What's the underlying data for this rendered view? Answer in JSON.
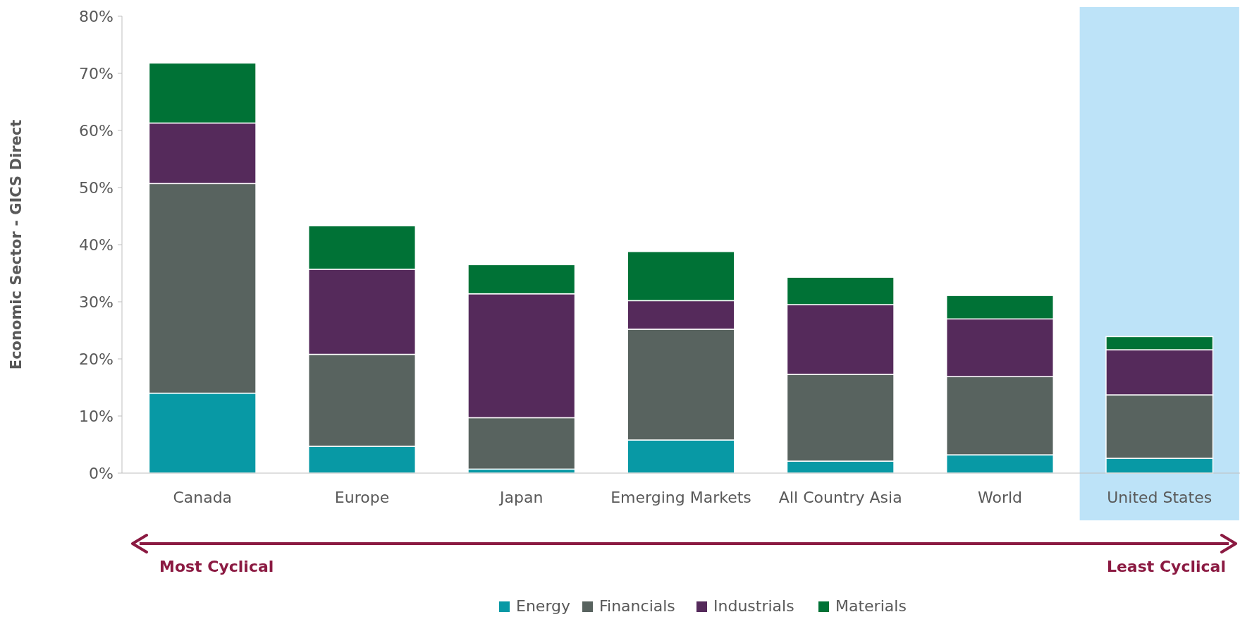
{
  "chart_data": {
    "type": "bar",
    "stacked": true,
    "ylabel": "Economic Sector - GICS Direct",
    "categories": [
      "Canada",
      "Europe",
      "Japan",
      "Emerging Markets",
      "All Country Asia",
      "World",
      "United States"
    ],
    "series": [
      {
        "name": "Energy",
        "color": "#0899a5",
        "values": [
          14.0,
          4.7,
          0.7,
          5.8,
          2.1,
          3.2,
          2.6
        ]
      },
      {
        "name": "Financials",
        "color": "#58635f",
        "values": [
          36.7,
          16.1,
          9.0,
          19.4,
          15.2,
          13.7,
          11.1
        ]
      },
      {
        "name": "Industrials",
        "color": "#552a5b",
        "values": [
          10.6,
          14.9,
          21.7,
          5.0,
          12.2,
          10.1,
          7.9
        ]
      },
      {
        "name": "Materials",
        "color": "#007236",
        "values": [
          10.5,
          7.6,
          5.1,
          8.6,
          4.8,
          4.1,
          2.3
        ]
      }
    ],
    "ylim": [
      0,
      80
    ],
    "yticks": [
      {
        "value": 0,
        "label": "0%"
      },
      {
        "value": 10,
        "label": "10%"
      },
      {
        "value": 20,
        "label": "20%"
      },
      {
        "value": 30,
        "label": "30%"
      },
      {
        "value": 40,
        "label": "40%"
      },
      {
        "value": 50,
        "label": "50%"
      },
      {
        "value": 60,
        "label": "60%"
      },
      {
        "value": 70,
        "label": "70%"
      },
      {
        "value": 80,
        "label": "80%"
      }
    ],
    "bands": [
      {
        "axis": "x",
        "from": "United States",
        "to": "United States",
        "color": "#bde3f8"
      }
    ],
    "annotations": [
      "Most Cyclical",
      "Least Cyclical"
    ],
    "grid": false,
    "legend": "bottom"
  }
}
